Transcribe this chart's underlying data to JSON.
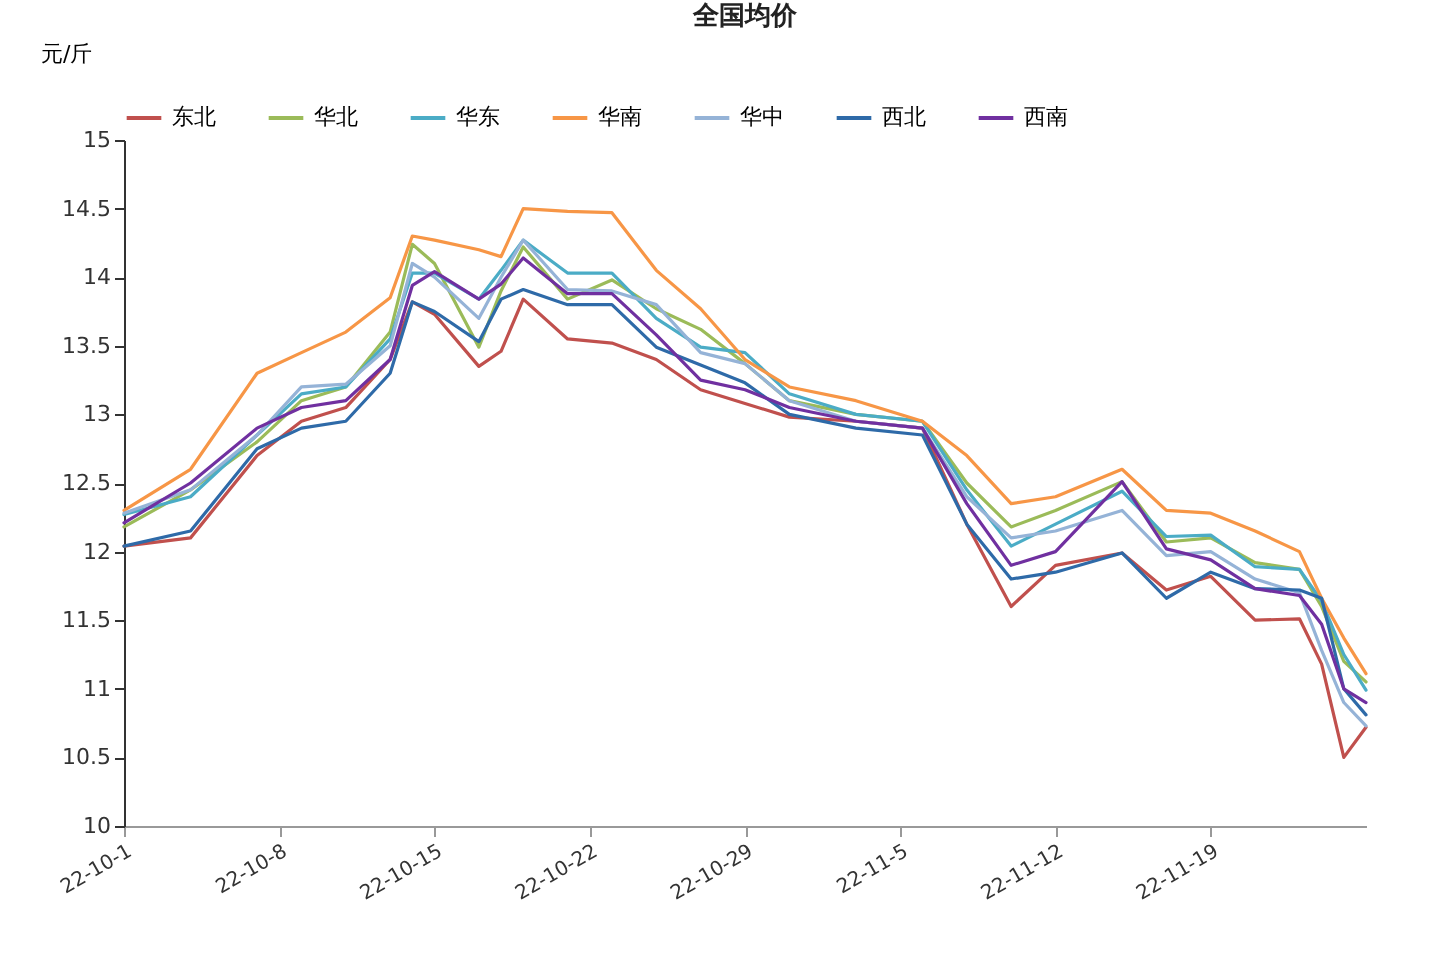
{
  "chart_data": {
    "type": "line",
    "title": "全国均价",
    "ylabel": "元/斤",
    "x": [
      "--10-01",
      "--10-04",
      "--10-07",
      "--10-09",
      "--10-11",
      "--10-13",
      "--10-14",
      "--10-15",
      "--10-17",
      "--10-18",
      "--10-19",
      "--10-21",
      "--10-23",
      "--10-25",
      "--10-27",
      "--10-29",
      "--10-31",
      "--11-03",
      "--11-06",
      "--11-08",
      "--11-10",
      "--11-12",
      "--11-15",
      "--11-17",
      "--11-19",
      "--11-21",
      "--11-23",
      "--11-24",
      "--11-25",
      "--11-26"
    ],
    "series": [
      {
        "name": "东北",
        "color": "#c0504d",
        "values": [
          12.04,
          12.1,
          12.7,
          12.95,
          13.05,
          13.4,
          13.82,
          13.73,
          13.35,
          13.46,
          13.84,
          13.55,
          13.52,
          13.4,
          13.18,
          13.08,
          12.98,
          12.95,
          12.9,
          12.2,
          11.6,
          11.9,
          11.99,
          11.72,
          11.82,
          11.5,
          11.51,
          11.18,
          10.5,
          10.72
        ]
      },
      {
        "name": "华北",
        "color": "#9bbb59",
        "values": [
          12.18,
          12.45,
          12.8,
          13.1,
          13.2,
          13.6,
          14.24,
          14.1,
          13.49,
          13.9,
          14.22,
          13.84,
          13.98,
          13.77,
          13.62,
          13.37,
          13.1,
          13.0,
          12.95,
          12.5,
          12.18,
          12.3,
          12.51,
          12.07,
          12.1,
          11.92,
          11.87,
          11.6,
          11.2,
          11.05
        ]
      },
      {
        "name": "华东",
        "color": "#4bacc6",
        "values": [
          12.27,
          12.4,
          12.85,
          13.15,
          13.2,
          13.55,
          14.03,
          14.03,
          13.84,
          14.05,
          14.27,
          14.03,
          14.03,
          13.7,
          13.49,
          13.45,
          13.15,
          13.0,
          12.95,
          12.45,
          12.04,
          12.2,
          12.44,
          12.11,
          12.12,
          11.89,
          11.87,
          11.64,
          11.25,
          10.99
        ]
      },
      {
        "name": "华南",
        "color": "#f79646",
        "values": [
          12.3,
          12.6,
          13.3,
          13.45,
          13.6,
          13.85,
          14.3,
          14.27,
          14.2,
          14.15,
          14.5,
          14.48,
          14.47,
          14.05,
          13.77,
          13.4,
          13.2,
          13.1,
          12.95,
          12.7,
          12.35,
          12.4,
          12.6,
          12.3,
          12.28,
          12.15,
          12.0,
          11.66,
          11.37,
          11.11
        ]
      },
      {
        "name": "华中",
        "color": "#95b3d7",
        "values": [
          12.28,
          12.45,
          12.85,
          13.2,
          13.22,
          13.5,
          14.1,
          14.0,
          13.7,
          14.0,
          14.27,
          13.91,
          13.9,
          13.8,
          13.45,
          13.37,
          13.1,
          12.95,
          12.9,
          12.4,
          12.1,
          12.15,
          12.3,
          11.97,
          12.0,
          11.8,
          11.7,
          11.28,
          10.9,
          10.73
        ]
      },
      {
        "name": "西北",
        "color": "#2e6aa8",
        "values": [
          12.04,
          12.15,
          12.75,
          12.9,
          12.95,
          13.3,
          13.82,
          13.75,
          13.53,
          13.84,
          13.91,
          13.8,
          13.8,
          13.49,
          13.36,
          13.23,
          13.0,
          12.9,
          12.85,
          12.2,
          11.8,
          11.85,
          11.99,
          11.66,
          11.85,
          11.73,
          11.72,
          11.66,
          11.0,
          10.81
        ]
      },
      {
        "name": "西南",
        "color": "#7030a0",
        "values": [
          12.21,
          12.5,
          12.9,
          13.05,
          13.1,
          13.4,
          13.94,
          14.04,
          13.84,
          13.95,
          14.14,
          13.88,
          13.88,
          13.58,
          13.25,
          13.18,
          13.05,
          12.95,
          12.9,
          12.35,
          11.9,
          12.0,
          12.51,
          12.02,
          11.94,
          11.73,
          11.68,
          11.47,
          11.0,
          10.9
        ]
      }
    ],
    "xlim": [
      "--10-01",
      "--11-26"
    ],
    "xticks": [
      {
        "value": "--10-01",
        "label": "22-10-1"
      },
      {
        "value": "--10-08",
        "label": "22-10-8"
      },
      {
        "value": "--10-15",
        "label": "22-10-15"
      },
      {
        "value": "--10-22",
        "label": "22-10-22"
      },
      {
        "value": "--10-29",
        "label": "22-10-29"
      },
      {
        "value": "--11-05",
        "label": "22-11-5"
      },
      {
        "value": "--11-12",
        "label": "22-11-12"
      },
      {
        "value": "--11-19",
        "label": "22-11-19"
      }
    ],
    "ylim": [
      10,
      15
    ],
    "yticks": [
      10,
      10.5,
      11,
      11.5,
      12,
      12.5,
      13,
      13.5,
      14,
      14.5,
      15
    ],
    "grid": false,
    "legend": "top",
    "marker": "none",
    "line_style": "solid"
  }
}
